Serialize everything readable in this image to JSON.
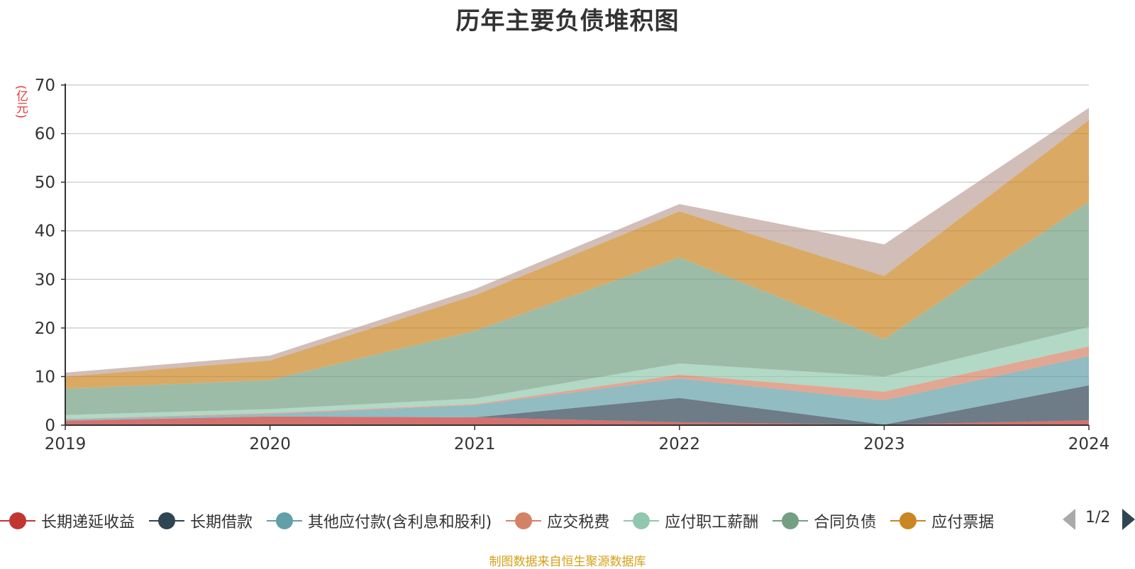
{
  "chart_data": {
    "type": "area",
    "stacked": true,
    "title": "历年主要负债堆积图",
    "unit_label": "(亿元)",
    "x": [
      "2019",
      "2020",
      "2021",
      "2022",
      "2023",
      "2024"
    ],
    "ylim": [
      0,
      70
    ],
    "yticks": [
      0,
      10,
      20,
      30,
      40,
      50,
      60,
      70
    ],
    "grid": true,
    "legend_position": "bottom",
    "series": [
      {
        "name": "长期递延收益",
        "color": "#c23531",
        "values": [
          0.9,
          1.8,
          1.6,
          0.6,
          0.1,
          1.0
        ]
      },
      {
        "name": "长期借款",
        "color": "#2f4554",
        "values": [
          0.0,
          0.0,
          0.0,
          5.0,
          0.0,
          7.2
        ]
      },
      {
        "name": "其他应付款(含利息和股利)",
        "color": "#61a0a8",
        "values": [
          0.3,
          0.5,
          2.5,
          4.0,
          5.0,
          6.0
        ]
      },
      {
        "name": "应交税费",
        "color": "#d48265",
        "values": [
          0.1,
          0.2,
          0.2,
          0.8,
          1.8,
          2.0
        ]
      },
      {
        "name": "应付职工薪酬",
        "color": "#91c7ae",
        "values": [
          0.8,
          0.8,
          1.2,
          2.3,
          3.1,
          4.0
        ]
      },
      {
        "name": "合同负债",
        "color": "#749f83",
        "values": [
          5.4,
          6.0,
          13.9,
          21.8,
          7.7,
          25.8
        ]
      },
      {
        "name": "应付票据",
        "color": "#ca8622",
        "values": [
          2.5,
          4.0,
          7.3,
          9.5,
          13.0,
          16.8
        ]
      },
      {
        "name": "",
        "color": "#bda29a",
        "values": [
          0.8,
          1.0,
          1.3,
          1.5,
          6.5,
          2.5
        ]
      }
    ]
  },
  "legend": {
    "page_indicator": "1/2"
  },
  "source_note": "制图数据来自恒生聚源数据库"
}
